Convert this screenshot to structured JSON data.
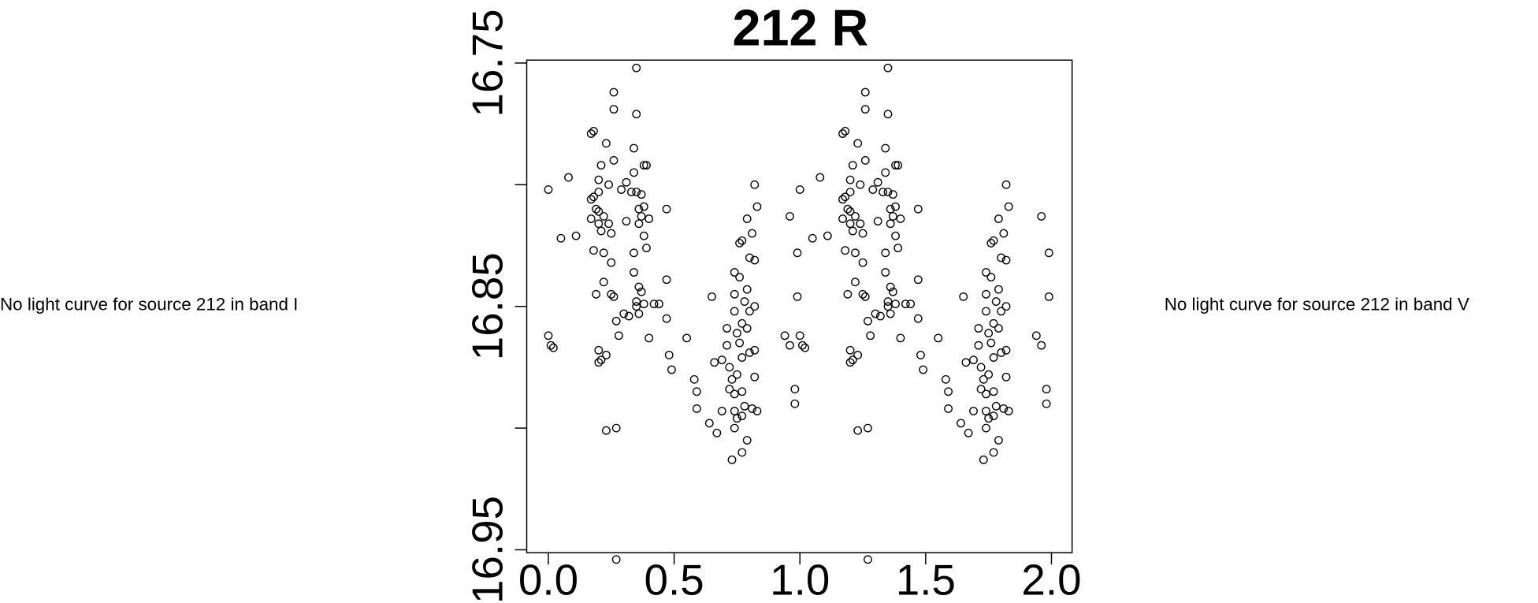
{
  "chart_data": {
    "type": "scatter",
    "title": "212 R",
    "x": [
      0.0,
      0.0,
      0.01,
      0.02,
      0.05,
      0.08,
      0.11,
      0.17,
      0.17,
      0.17,
      0.18,
      0.18,
      0.18,
      0.19,
      0.19,
      0.2,
      0.2,
      0.2,
      0.2,
      0.2,
      0.2,
      0.21,
      0.21,
      0.21,
      0.22,
      0.22,
      0.22,
      0.23,
      0.23,
      0.23,
      0.24,
      0.24,
      0.25,
      0.25,
      0.25,
      0.26,
      0.26,
      0.26,
      0.26,
      0.27,
      0.27,
      0.27,
      0.28,
      0.29,
      0.3,
      0.31,
      0.31,
      0.32,
      0.33,
      0.34,
      0.34,
      0.34,
      0.34,
      0.35,
      0.35,
      0.35,
      0.35,
      0.35,
      0.36,
      0.36,
      0.36,
      0.36,
      0.37,
      0.37,
      0.37,
      0.38,
      0.38,
      0.38,
      0.38,
      0.39,
      0.39,
      0.4,
      0.4,
      0.42,
      0.44,
      0.47,
      0.47,
      0.47,
      0.48,
      0.49,
      0.55,
      0.58,
      0.59,
      0.59,
      0.64,
      0.65,
      0.66,
      0.67,
      0.69,
      0.69,
      0.71,
      0.71,
      0.72,
      0.72,
      0.73,
      0.73,
      0.74,
      0.74,
      0.74,
      0.74,
      0.74,
      0.74,
      0.75,
      0.75,
      0.75,
      0.76,
      0.76,
      0.76,
      0.77,
      0.77,
      0.77,
      0.77,
      0.77,
      0.77,
      0.78,
      0.78,
      0.79,
      0.79,
      0.79,
      0.79,
      0.8,
      0.8,
      0.8,
      0.81,
      0.81,
      0.82,
      0.82,
      0.82,
      0.82,
      0.82,
      0.83,
      0.83,
      0.94,
      0.96,
      0.96,
      0.98,
      0.98,
      0.99,
      0.99,
      1.0,
      1.0,
      1.01,
      1.02,
      1.05,
      1.08,
      1.11,
      1.17,
      1.17,
      1.17,
      1.18,
      1.18,
      1.18,
      1.19,
      1.19,
      1.2,
      1.2,
      1.2,
      1.2,
      1.2,
      1.2,
      1.21,
      1.21,
      1.21,
      1.22,
      1.22,
      1.22,
      1.23,
      1.23,
      1.23,
      1.24,
      1.24,
      1.25,
      1.25,
      1.25,
      1.26,
      1.26,
      1.26,
      1.26,
      1.27,
      1.27,
      1.27,
      1.28,
      1.29,
      1.3,
      1.31,
      1.31,
      1.32,
      1.33,
      1.34,
      1.34,
      1.34,
      1.34,
      1.35,
      1.35,
      1.35,
      1.35,
      1.35,
      1.36,
      1.36,
      1.36,
      1.36,
      1.37,
      1.37,
      1.37,
      1.38,
      1.38,
      1.38,
      1.38,
      1.39,
      1.39,
      1.4,
      1.4,
      1.42,
      1.44,
      1.47,
      1.47,
      1.47,
      1.48,
      1.49,
      1.55,
      1.58,
      1.59,
      1.59,
      1.64,
      1.65,
      1.66,
      1.67,
      1.69,
      1.69,
      1.71,
      1.71,
      1.72,
      1.72,
      1.73,
      1.73,
      1.74,
      1.74,
      1.74,
      1.74,
      1.74,
      1.74,
      1.75,
      1.75,
      1.75,
      1.76,
      1.76,
      1.76,
      1.77,
      1.77,
      1.77,
      1.77,
      1.77,
      1.77,
      1.78,
      1.78,
      1.79,
      1.79,
      1.79,
      1.79,
      1.8,
      1.8,
      1.8,
      1.81,
      1.81,
      1.82,
      1.82,
      1.82,
      1.82,
      1.82,
      1.83,
      1.83,
      1.94,
      1.96,
      1.96,
      1.98,
      1.98,
      1.99,
      1.99
    ],
    "values": [
      16.802,
      16.862,
      16.866,
      16.867,
      16.822,
      16.797,
      16.821,
      16.814,
      16.806,
      16.779,
      16.778,
      16.805,
      16.827,
      16.81,
      16.845,
      16.798,
      16.803,
      16.811,
      16.816,
      16.868,
      16.873,
      16.872,
      16.792,
      16.819,
      16.813,
      16.828,
      16.84,
      16.87,
      16.901,
      16.783,
      16.816,
      16.8,
      16.82,
      16.832,
      16.845,
      16.846,
      16.79,
      16.769,
      16.762,
      16.954,
      16.9,
      16.856,
      16.862,
      16.802,
      16.853,
      16.799,
      16.815,
      16.854,
      16.803,
      16.785,
      16.795,
      16.828,
      16.836,
      16.752,
      16.771,
      16.803,
      16.848,
      16.85,
      16.816,
      16.81,
      16.853,
      16.842,
      16.804,
      16.813,
      16.844,
      16.792,
      16.809,
      16.821,
      16.849,
      16.792,
      16.826,
      16.814,
      16.863,
      16.849,
      16.849,
      16.81,
      16.839,
      16.855,
      16.87,
      16.876,
      16.863,
      16.88,
      16.885,
      16.892,
      16.898,
      16.846,
      16.873,
      16.902,
      16.872,
      16.893,
      16.859,
      16.866,
      16.875,
      16.884,
      16.88,
      16.913,
      16.836,
      16.845,
      16.852,
      16.886,
      16.893,
      16.9,
      16.861,
      16.878,
      16.896,
      16.824,
      16.838,
      16.865,
      16.823,
      16.857,
      16.871,
      16.885,
      16.895,
      16.91,
      16.848,
      16.891,
      16.814,
      16.843,
      16.859,
      16.905,
      16.83,
      16.852,
      16.869,
      16.82,
      16.892,
      16.8,
      16.831,
      16.85,
      16.868,
      16.879,
      16.809,
      16.893,
      16.862,
      16.866,
      16.813,
      16.884,
      16.89,
      16.828,
      16.846,
      16.802,
      16.862,
      16.866,
      16.867,
      16.822,
      16.797,
      16.821,
      16.814,
      16.806,
      16.779,
      16.778,
      16.805,
      16.827,
      16.81,
      16.845,
      16.798,
      16.803,
      16.811,
      16.816,
      16.868,
      16.873,
      16.872,
      16.792,
      16.819,
      16.813,
      16.828,
      16.84,
      16.87,
      16.901,
      16.783,
      16.816,
      16.8,
      16.82,
      16.832,
      16.845,
      16.846,
      16.79,
      16.769,
      16.762,
      16.954,
      16.9,
      16.856,
      16.862,
      16.802,
      16.853,
      16.799,
      16.815,
      16.854,
      16.803,
      16.785,
      16.795,
      16.828,
      16.836,
      16.752,
      16.771,
      16.803,
      16.848,
      16.85,
      16.816,
      16.81,
      16.853,
      16.842,
      16.804,
      16.813,
      16.844,
      16.792,
      16.809,
      16.821,
      16.849,
      16.792,
      16.826,
      16.814,
      16.863,
      16.849,
      16.849,
      16.81,
      16.839,
      16.855,
      16.87,
      16.876,
      16.863,
      16.88,
      16.885,
      16.892,
      16.898,
      16.846,
      16.873,
      16.902,
      16.872,
      16.893,
      16.859,
      16.866,
      16.875,
      16.884,
      16.88,
      16.913,
      16.836,
      16.845,
      16.852,
      16.886,
      16.893,
      16.9,
      16.861,
      16.878,
      16.896,
      16.824,
      16.838,
      16.865,
      16.823,
      16.857,
      16.871,
      16.885,
      16.895,
      16.91,
      16.848,
      16.891,
      16.814,
      16.843,
      16.859,
      16.905,
      16.83,
      16.852,
      16.869,
      16.82,
      16.892,
      16.8,
      16.831,
      16.85,
      16.868,
      16.879,
      16.809,
      16.893,
      16.862,
      16.866,
      16.813,
      16.884,
      16.89,
      16.828,
      16.846
    ],
    "color": "#000000",
    "xlim": [
      -0.086,
      2.082
    ],
    "ylim": [
      16.9512,
      16.7488
    ],
    "xticks": [
      {
        "value": 0,
        "label": "0.0"
      },
      0.5,
      {
        "value": 1,
        "label": "1.0"
      },
      1.5,
      {
        "value": 2,
        "label": "2.0"
      }
    ],
    "yticks": [
      16.75,
      {
        "value": 16.8,
        "label": null
      },
      16.85,
      {
        "value": 16.9,
        "label": null
      },
      16.95
    ]
  },
  "notes": [
    "No light curve for source 212 in band I",
    "No light curve for source 212 in band V"
  ]
}
